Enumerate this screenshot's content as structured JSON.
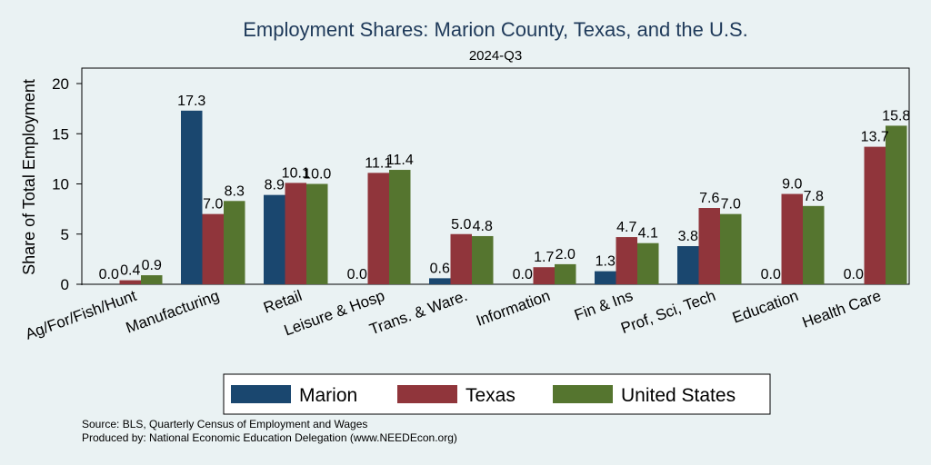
{
  "chart_data": {
    "type": "bar",
    "title": "Employment Shares: Marion County, Texas, and the U.S.",
    "subtitle": "2024-Q3",
    "xlabel": "",
    "ylabel": "Share of Total Employment",
    "ylim": [
      0,
      21.5
    ],
    "yticks": [
      "0",
      "5",
      "10",
      "15",
      "20"
    ],
    "categories": [
      "Ag/For/Fish/Hunt",
      "Manufacturing",
      "Retail",
      "Leisure & Hosp",
      "Trans. & Ware.",
      "Information",
      "Fin & Ins",
      "Prof, Sci, Tech",
      "Education",
      "Health Care"
    ],
    "series": [
      {
        "name": "Marion",
        "color": "#1a476f",
        "values": [
          0.0,
          17.3,
          8.9,
          0.0,
          0.6,
          0.0,
          1.3,
          3.8,
          0.0,
          0.0
        ],
        "labels": [
          "0.0",
          "17.3",
          "8.9",
          "0.0",
          "0.6",
          "0.0",
          "1.3",
          "3.8",
          "0.0",
          "0.0"
        ]
      },
      {
        "name": "Texas",
        "color": "#90353b",
        "values": [
          0.4,
          7.0,
          10.1,
          11.1,
          5.0,
          1.7,
          4.7,
          7.6,
          9.0,
          13.7
        ],
        "labels": [
          "0.4",
          "7.0",
          "10.1",
          "11.1",
          "5.0",
          "1.7",
          "4.7",
          "7.6",
          "9.0",
          "13.7"
        ]
      },
      {
        "name": "United States",
        "color": "#55752f",
        "values": [
          0.9,
          8.3,
          10.0,
          11.4,
          4.8,
          2.0,
          4.1,
          7.0,
          7.8,
          15.8
        ],
        "labels": [
          "0.9",
          "8.3",
          "10.0",
          "11.4",
          "4.8",
          "2.0",
          "4.1",
          "7.0",
          "7.8",
          "15.8"
        ]
      }
    ],
    "legend": {
      "placement": "bottom"
    },
    "grid": false
  },
  "footer": {
    "source": "Source: BLS, Quarterly Census of Employment and Wages",
    "produced": "Produced by: National Economic Education Delegation (www.NEEDEcon.org)"
  }
}
